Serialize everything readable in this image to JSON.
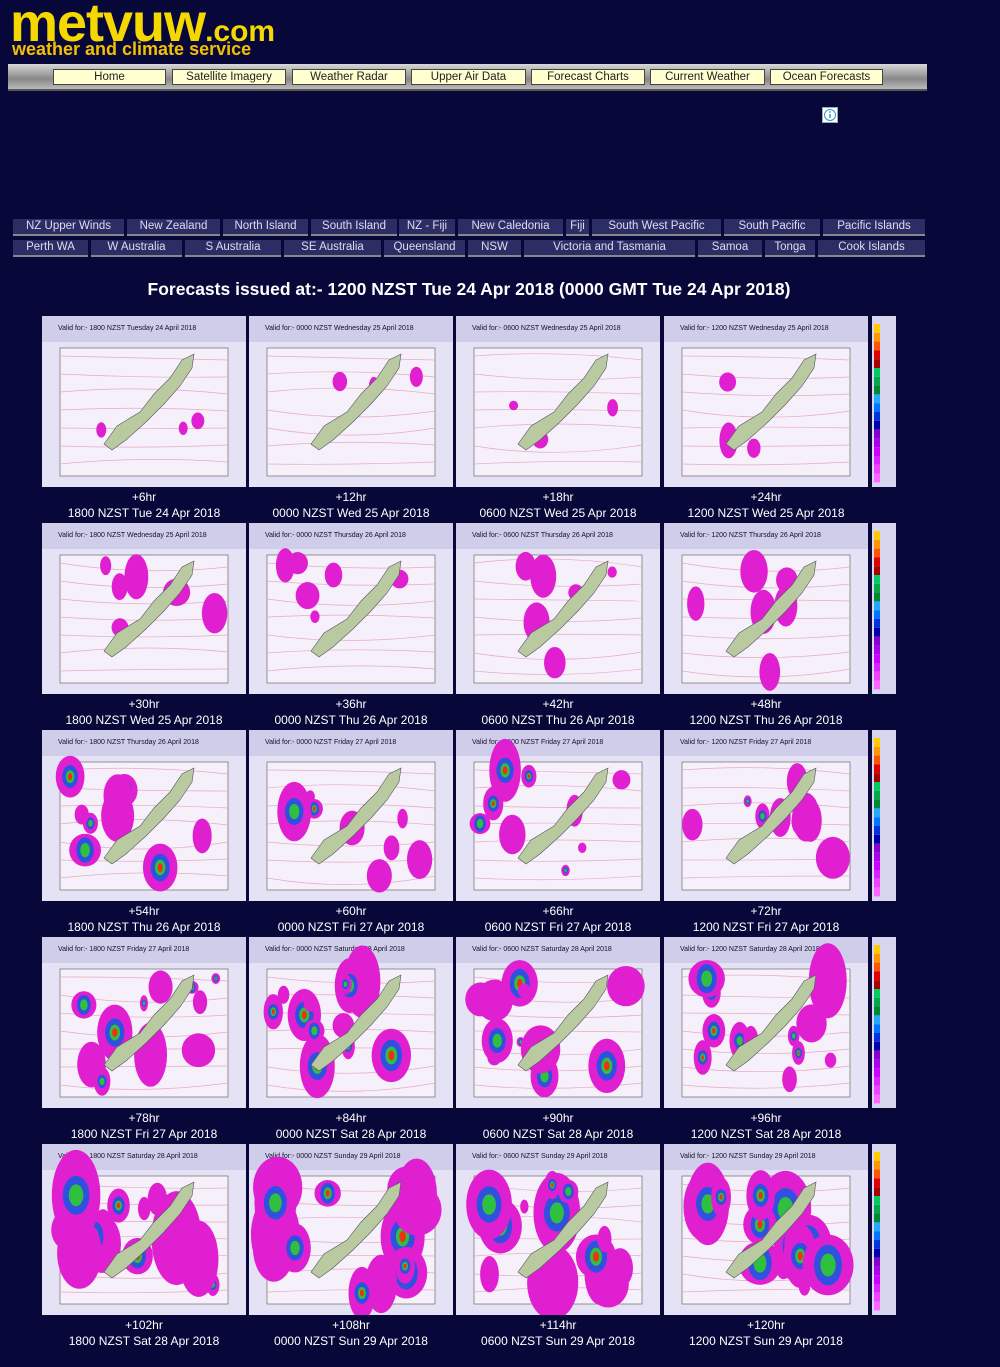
{
  "header": {
    "logo": "metvuw",
    "logo_suffix": ".com",
    "tagline": "weather and climate service"
  },
  "nav": [
    "Home",
    "Satellite Imagery",
    "Weather Radar",
    "Upper Air Data",
    "Forecast Charts",
    "Current Weather",
    "Ocean Forecasts"
  ],
  "regions": [
    [
      "NZ Upper Winds",
      "New Zealand",
      "North Island",
      "South Island",
      "NZ - Fiji",
      "New Caledonia",
      "Fiji",
      "South West Pacific",
      "South Pacific",
      "Pacific Islands"
    ],
    [
      "Perth WA",
      "W Australia",
      "S Australia",
      "SE Australia",
      "Queensland",
      "NSW",
      "Victoria and Tasmania",
      "Samoa",
      "Tonga",
      "Cook Islands"
    ]
  ],
  "issued": "Forecasts issued at:- 1200 NZST Tue 24 Apr 2018 (0000 GMT Tue 24 Apr 2018)",
  "maps": [
    {
      "lead": "+6hr",
      "time": "1800 NZST Tue 24 Apr 2018",
      "valid": "Valid for:- 1800 NZST Tuesday 24 April 2018"
    },
    {
      "lead": "+12hr",
      "time": "0000 NZST Wed 25 Apr 2018",
      "valid": "Valid for:- 0000 NZST Wednesday 25 April 2018"
    },
    {
      "lead": "+18hr",
      "time": "0600 NZST Wed 25 Apr 2018",
      "valid": "Valid for:- 0600 NZST Wednesday 25 April 2018"
    },
    {
      "lead": "+24hr",
      "time": "1200 NZST Wed 25 Apr 2018",
      "valid": "Valid for:- 1200 NZST Wednesday 25 April 2018"
    },
    {
      "lead": "+30hr",
      "time": "1800 NZST Wed 25 Apr 2018",
      "valid": "Valid for:- 1800 NZST Wednesday 25 April 2018"
    },
    {
      "lead": "+36hr",
      "time": "0000 NZST Thu 26 Apr 2018",
      "valid": "Valid for:- 0000 NZST Thursday 26 April 2018"
    },
    {
      "lead": "+42hr",
      "time": "0600 NZST Thu 26 Apr 2018",
      "valid": "Valid for:- 0600 NZST Thursday 26 April 2018"
    },
    {
      "lead": "+48hr",
      "time": "1200 NZST Thu 26 Apr 2018",
      "valid": "Valid for:- 1200 NZST Thursday 26 April 2018"
    },
    {
      "lead": "+54hr",
      "time": "1800 NZST Thu 26 Apr 2018",
      "valid": "Valid for:- 1800 NZST Thursday 26 April 2018"
    },
    {
      "lead": "+60hr",
      "time": "0000 NZST Fri 27 Apr 2018",
      "valid": "Valid for:- 0000 NZST Friday 27 April 2018"
    },
    {
      "lead": "+66hr",
      "time": "0600 NZST Fri 27 Apr 2018",
      "valid": "Valid for:- 0600 NZST Friday 27 April 2018"
    },
    {
      "lead": "+72hr",
      "time": "1200 NZST Fri 27 Apr 2018",
      "valid": "Valid for:- 1200 NZST Friday 27 April 2018"
    },
    {
      "lead": "+78hr",
      "time": "1800 NZST Fri 27 Apr 2018",
      "valid": "Valid for:- 1800 NZST Friday 27 April 2018"
    },
    {
      "lead": "+84hr",
      "time": "0000 NZST Sat 28 Apr 2018",
      "valid": "Valid for:- 0000 NZST Saturday 28 April 2018"
    },
    {
      "lead": "+90hr",
      "time": "0600 NZST Sat 28 Apr 2018",
      "valid": "Valid for:- 0600 NZST Saturday 28 April 2018"
    },
    {
      "lead": "+96hr",
      "time": "1200 NZST Sat 28 Apr 2018",
      "valid": "Valid for:- 1200 NZST Saturday 28 April 2018"
    },
    {
      "lead": "+102hr",
      "time": "1800 NZST Sat 28 Apr 2018",
      "valid": "Valid for:- 1800 NZST Saturday 28 April 2018"
    },
    {
      "lead": "+108hr",
      "time": "0000 NZST Sun 29 Apr 2018",
      "valid": "Valid for:- 0000 NZST Sunday 29 April 2018"
    },
    {
      "lead": "+114hr",
      "time": "0600 NZST Sun 29 Apr 2018",
      "valid": "Valid for:- 0600 NZST Sunday 29 April 2018"
    },
    {
      "lead": "+120hr",
      "time": "1200 NZST Sun 29 Apr 2018",
      "valid": "Valid for:- 1200 NZST Sunday 29 April 2018"
    }
  ]
}
